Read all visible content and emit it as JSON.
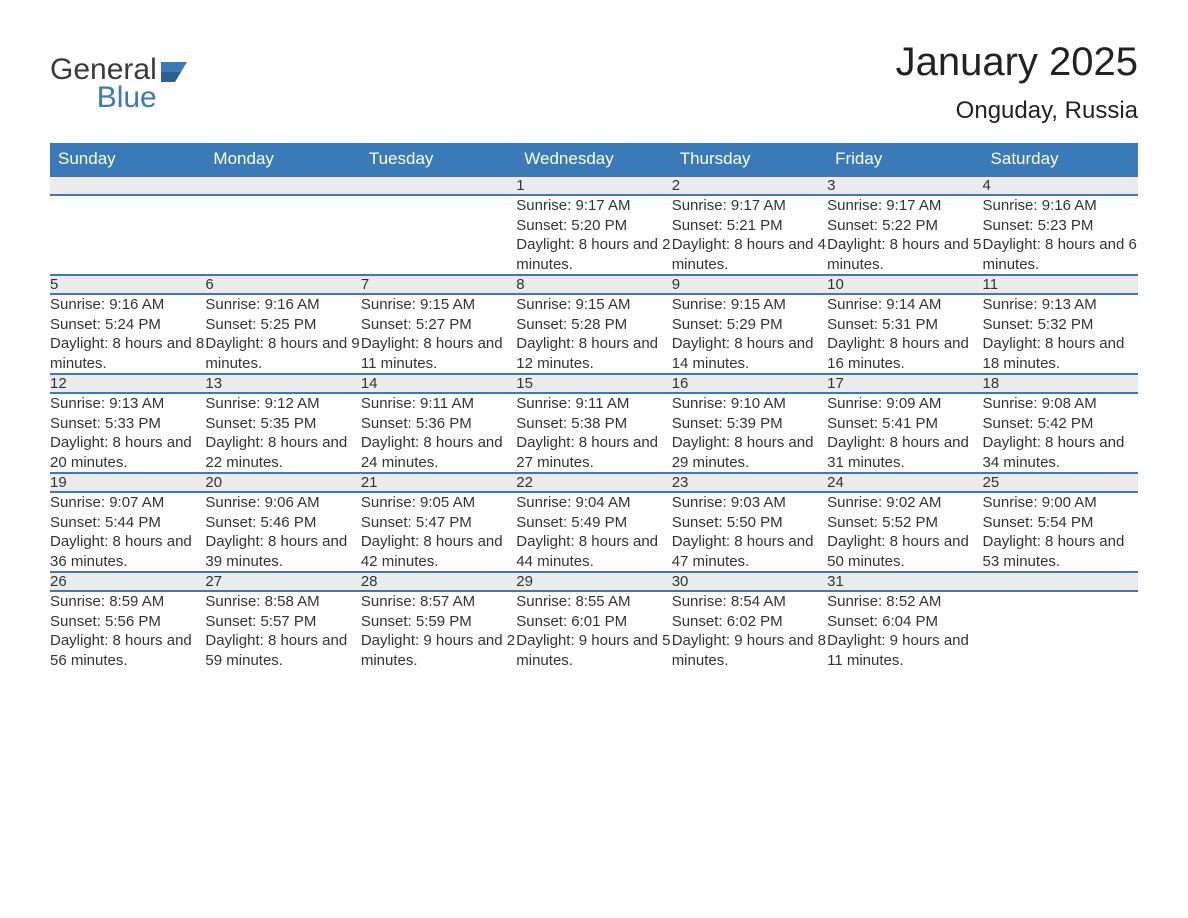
{
  "brand": {
    "part1": "General",
    "part2": "Blue",
    "text_color": "#3a3a3a",
    "accent": "#3a7ab8"
  },
  "title": "January 2025",
  "subtitle": "Onguday, Russia",
  "colors": {
    "header_bg": "#3a7ab8",
    "header_fg": "#ffffff",
    "daynum_bg": "#ebebeb",
    "row_border": "#3a7ab8",
    "text": "#333333"
  },
  "weekdays": [
    "Sunday",
    "Monday",
    "Tuesday",
    "Wednesday",
    "Thursday",
    "Friday",
    "Saturday"
  ],
  "weeks": [
    [
      null,
      null,
      null,
      {
        "day": "1",
        "sunrise": "9:17 AM",
        "sunset": "5:20 PM",
        "daylight": "8 hours and 2 minutes."
      },
      {
        "day": "2",
        "sunrise": "9:17 AM",
        "sunset": "5:21 PM",
        "daylight": "8 hours and 4 minutes."
      },
      {
        "day": "3",
        "sunrise": "9:17 AM",
        "sunset": "5:22 PM",
        "daylight": "8 hours and 5 minutes."
      },
      {
        "day": "4",
        "sunrise": "9:16 AM",
        "sunset": "5:23 PM",
        "daylight": "8 hours and 6 minutes."
      }
    ],
    [
      {
        "day": "5",
        "sunrise": "9:16 AM",
        "sunset": "5:24 PM",
        "daylight": "8 hours and 8 minutes."
      },
      {
        "day": "6",
        "sunrise": "9:16 AM",
        "sunset": "5:25 PM",
        "daylight": "8 hours and 9 minutes."
      },
      {
        "day": "7",
        "sunrise": "9:15 AM",
        "sunset": "5:27 PM",
        "daylight": "8 hours and 11 minutes."
      },
      {
        "day": "8",
        "sunrise": "9:15 AM",
        "sunset": "5:28 PM",
        "daylight": "8 hours and 12 minutes."
      },
      {
        "day": "9",
        "sunrise": "9:15 AM",
        "sunset": "5:29 PM",
        "daylight": "8 hours and 14 minutes."
      },
      {
        "day": "10",
        "sunrise": "9:14 AM",
        "sunset": "5:31 PM",
        "daylight": "8 hours and 16 minutes."
      },
      {
        "day": "11",
        "sunrise": "9:13 AM",
        "sunset": "5:32 PM",
        "daylight": "8 hours and 18 minutes."
      }
    ],
    [
      {
        "day": "12",
        "sunrise": "9:13 AM",
        "sunset": "5:33 PM",
        "daylight": "8 hours and 20 minutes."
      },
      {
        "day": "13",
        "sunrise": "9:12 AM",
        "sunset": "5:35 PM",
        "daylight": "8 hours and 22 minutes."
      },
      {
        "day": "14",
        "sunrise": "9:11 AM",
        "sunset": "5:36 PM",
        "daylight": "8 hours and 24 minutes."
      },
      {
        "day": "15",
        "sunrise": "9:11 AM",
        "sunset": "5:38 PM",
        "daylight": "8 hours and 27 minutes."
      },
      {
        "day": "16",
        "sunrise": "9:10 AM",
        "sunset": "5:39 PM",
        "daylight": "8 hours and 29 minutes."
      },
      {
        "day": "17",
        "sunrise": "9:09 AM",
        "sunset": "5:41 PM",
        "daylight": "8 hours and 31 minutes."
      },
      {
        "day": "18",
        "sunrise": "9:08 AM",
        "sunset": "5:42 PM",
        "daylight": "8 hours and 34 minutes."
      }
    ],
    [
      {
        "day": "19",
        "sunrise": "9:07 AM",
        "sunset": "5:44 PM",
        "daylight": "8 hours and 36 minutes."
      },
      {
        "day": "20",
        "sunrise": "9:06 AM",
        "sunset": "5:46 PM",
        "daylight": "8 hours and 39 minutes."
      },
      {
        "day": "21",
        "sunrise": "9:05 AM",
        "sunset": "5:47 PM",
        "daylight": "8 hours and 42 minutes."
      },
      {
        "day": "22",
        "sunrise": "9:04 AM",
        "sunset": "5:49 PM",
        "daylight": "8 hours and 44 minutes."
      },
      {
        "day": "23",
        "sunrise": "9:03 AM",
        "sunset": "5:50 PM",
        "daylight": "8 hours and 47 minutes."
      },
      {
        "day": "24",
        "sunrise": "9:02 AM",
        "sunset": "5:52 PM",
        "daylight": "8 hours and 50 minutes."
      },
      {
        "day": "25",
        "sunrise": "9:00 AM",
        "sunset": "5:54 PM",
        "daylight": "8 hours and 53 minutes."
      }
    ],
    [
      {
        "day": "26",
        "sunrise": "8:59 AM",
        "sunset": "5:56 PM",
        "daylight": "8 hours and 56 minutes."
      },
      {
        "day": "27",
        "sunrise": "8:58 AM",
        "sunset": "5:57 PM",
        "daylight": "8 hours and 59 minutes."
      },
      {
        "day": "28",
        "sunrise": "8:57 AM",
        "sunset": "5:59 PM",
        "daylight": "9 hours and 2 minutes."
      },
      {
        "day": "29",
        "sunrise": "8:55 AM",
        "sunset": "6:01 PM",
        "daylight": "9 hours and 5 minutes."
      },
      {
        "day": "30",
        "sunrise": "8:54 AM",
        "sunset": "6:02 PM",
        "daylight": "9 hours and 8 minutes."
      },
      {
        "day": "31",
        "sunrise": "8:52 AM",
        "sunset": "6:04 PM",
        "daylight": "9 hours and 11 minutes."
      },
      null
    ]
  ],
  "labels": {
    "sunrise_prefix": "Sunrise: ",
    "sunset_prefix": "Sunset: ",
    "daylight_prefix": "Daylight: "
  }
}
